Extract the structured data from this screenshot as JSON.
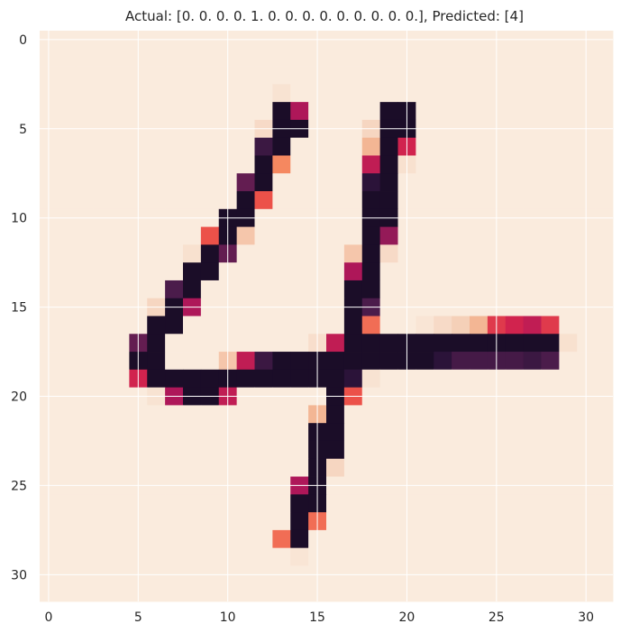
{
  "chart_data": {
    "type": "heatmap",
    "title": "Actual: [0. 0. 0. 0. 1. 0. 0. 0. 0. 0. 0. 0. 0. 0.], Predicted: [4]",
    "xlabel": "",
    "ylabel": "",
    "grid": true,
    "colormap": "rocket_r",
    "value_range": [
      0,
      1
    ],
    "shape": [
      32,
      32
    ],
    "x_ticks": [
      0,
      5,
      10,
      15,
      20,
      25,
      30
    ],
    "y_ticks": [
      0,
      5,
      10,
      15,
      20,
      25,
      30
    ],
    "values": [
      [
        0,
        0,
        0,
        0,
        0,
        0,
        0,
        0,
        0,
        0,
        0,
        0,
        0,
        0,
        0,
        0,
        0,
        0,
        0,
        0,
        0,
        0,
        0,
        0,
        0,
        0,
        0,
        0,
        0,
        0,
        0,
        0
      ],
      [
        0,
        0,
        0,
        0,
        0,
        0,
        0,
        0,
        0,
        0,
        0,
        0,
        0,
        0,
        0,
        0,
        0,
        0,
        0,
        0,
        0,
        0,
        0,
        0,
        0,
        0,
        0,
        0,
        0,
        0,
        0,
        0
      ],
      [
        0,
        0,
        0,
        0,
        0,
        0,
        0,
        0,
        0,
        0,
        0,
        0,
        0,
        0,
        0,
        0,
        0,
        0,
        0,
        0,
        0,
        0,
        0,
        0,
        0,
        0,
        0,
        0,
        0,
        0,
        0,
        0
      ],
      [
        0,
        0,
        0,
        0,
        0,
        0,
        0,
        0,
        0,
        0,
        0,
        0,
        0,
        0.04,
        0,
        0,
        0,
        0,
        0,
        0,
        0,
        0,
        0,
        0,
        0,
        0,
        0,
        0,
        0,
        0,
        0,
        0
      ],
      [
        0,
        0,
        0,
        0,
        0,
        0,
        0,
        0,
        0,
        0,
        0,
        0,
        0,
        0.95,
        0.6,
        0,
        0,
        0,
        0,
        0.95,
        0.95,
        0,
        0,
        0,
        0,
        0,
        0,
        0,
        0,
        0,
        0,
        0
      ],
      [
        0,
        0,
        0,
        0,
        0,
        0,
        0,
        0,
        0,
        0,
        0,
        0,
        0.08,
        0.95,
        0.95,
        0,
        0,
        0,
        0.1,
        0.95,
        0.95,
        0,
        0,
        0,
        0,
        0,
        0,
        0,
        0,
        0,
        0,
        0
      ],
      [
        0,
        0,
        0,
        0,
        0,
        0,
        0,
        0,
        0,
        0,
        0,
        0,
        0.85,
        0.95,
        0,
        0,
        0,
        0,
        0.2,
        0.95,
        0.5,
        0,
        0,
        0,
        0,
        0,
        0,
        0,
        0,
        0,
        0,
        0
      ],
      [
        0,
        0,
        0,
        0,
        0,
        0,
        0,
        0,
        0,
        0,
        0,
        0,
        0.95,
        0.3,
        0,
        0,
        0,
        0,
        0.55,
        0.95,
        0.05,
        0,
        0,
        0,
        0,
        0,
        0,
        0,
        0,
        0,
        0,
        0
      ],
      [
        0,
        0,
        0,
        0,
        0,
        0,
        0,
        0,
        0,
        0,
        0,
        0.75,
        0.95,
        0,
        0,
        0,
        0,
        0,
        0.9,
        0.95,
        0,
        0,
        0,
        0,
        0,
        0,
        0,
        0,
        0,
        0,
        0,
        0
      ],
      [
        0,
        0,
        0,
        0,
        0,
        0,
        0,
        0,
        0,
        0,
        0,
        0.95,
        0.4,
        0,
        0,
        0,
        0,
        0,
        0.95,
        0.95,
        0,
        0,
        0,
        0,
        0,
        0,
        0,
        0,
        0,
        0,
        0,
        0
      ],
      [
        0,
        0,
        0,
        0,
        0,
        0,
        0,
        0,
        0,
        0,
        0.95,
        0.95,
        0,
        0,
        0,
        0,
        0,
        0,
        0.95,
        0.95,
        0,
        0,
        0,
        0,
        0,
        0,
        0,
        0,
        0,
        0,
        0,
        0
      ],
      [
        0,
        0,
        0,
        0,
        0,
        0,
        0,
        0,
        0,
        0.4,
        0.95,
        0.15,
        0,
        0,
        0,
        0,
        0,
        0,
        0.95,
        0.65,
        0,
        0,
        0,
        0,
        0,
        0,
        0,
        0,
        0,
        0,
        0,
        0
      ],
      [
        0,
        0,
        0,
        0,
        0,
        0,
        0,
        0,
        0.05,
        0.95,
        0.75,
        0,
        0,
        0,
        0,
        0,
        0,
        0.15,
        0.95,
        0.08,
        0,
        0,
        0,
        0,
        0,
        0,
        0,
        0,
        0,
        0,
        0,
        0
      ],
      [
        0,
        0,
        0,
        0,
        0,
        0,
        0,
        0,
        0.95,
        0.95,
        0,
        0,
        0,
        0,
        0,
        0,
        0,
        0.6,
        0.95,
        0,
        0,
        0,
        0,
        0,
        0,
        0,
        0,
        0,
        0,
        0,
        0,
        0
      ],
      [
        0,
        0,
        0,
        0,
        0,
        0,
        0,
        0.8,
        0.95,
        0,
        0,
        0,
        0,
        0,
        0,
        0,
        0,
        0.95,
        0.95,
        0,
        0,
        0,
        0,
        0,
        0,
        0,
        0,
        0,
        0,
        0,
        0,
        0
      ],
      [
        0,
        0,
        0,
        0,
        0,
        0,
        0.1,
        0.95,
        0.6,
        0,
        0,
        0,
        0,
        0,
        0,
        0,
        0,
        0.95,
        0.8,
        0,
        0,
        0,
        0,
        0,
        0,
        0,
        0,
        0,
        0,
        0,
        0,
        0
      ],
      [
        0,
        0,
        0,
        0,
        0,
        0,
        0.95,
        0.95,
        0,
        0,
        0,
        0,
        0,
        0,
        0,
        0,
        0,
        0.95,
        0.35,
        0,
        0,
        0.03,
        0.08,
        0.12,
        0.2,
        0.45,
        0.5,
        0.55,
        0.45,
        0,
        0,
        0
      ],
      [
        0,
        0,
        0,
        0,
        0,
        0.75,
        0.95,
        0,
        0,
        0,
        0,
        0,
        0,
        0,
        0,
        0.06,
        0.55,
        0.95,
        0.95,
        0.95,
        0.95,
        0.95,
        0.95,
        0.95,
        0.95,
        0.95,
        0.95,
        0.95,
        0.95,
        0.05,
        0,
        0
      ],
      [
        0,
        0,
        0,
        0,
        0,
        0.95,
        0.95,
        0,
        0,
        0,
        0.15,
        0.55,
        0.85,
        0.95,
        0.95,
        0.95,
        0.95,
        0.95,
        0.95,
        0.95,
        0.95,
        0.95,
        0.9,
        0.82,
        0.82,
        0.82,
        0.82,
        0.85,
        0.8,
        0,
        0,
        0
      ],
      [
        0,
        0,
        0,
        0,
        0,
        0.5,
        0.95,
        0.95,
        0.95,
        0.95,
        0.95,
        0.95,
        0.95,
        0.95,
        0.95,
        0.95,
        0.95,
        0.9,
        0.04,
        0,
        0,
        0,
        0,
        0,
        0,
        0,
        0,
        0,
        0,
        0,
        0,
        0
      ],
      [
        0,
        0,
        0,
        0,
        0,
        0,
        0.04,
        0.6,
        0.95,
        0.95,
        0.55,
        0,
        0,
        0,
        0,
        0,
        0.95,
        0.4,
        0,
        0,
        0,
        0,
        0,
        0,
        0,
        0,
        0,
        0,
        0,
        0,
        0,
        0
      ],
      [
        0,
        0,
        0,
        0,
        0,
        0,
        0,
        0,
        0,
        0,
        0,
        0,
        0,
        0,
        0,
        0.2,
        0.95,
        0,
        0,
        0,
        0,
        0,
        0,
        0,
        0,
        0,
        0,
        0,
        0,
        0,
        0,
        0
      ],
      [
        0,
        0,
        0,
        0,
        0,
        0,
        0,
        0,
        0,
        0,
        0,
        0,
        0,
        0,
        0,
        0.95,
        0.95,
        0,
        0,
        0,
        0,
        0,
        0,
        0,
        0,
        0,
        0,
        0,
        0,
        0,
        0,
        0
      ],
      [
        0,
        0,
        0,
        0,
        0,
        0,
        0,
        0,
        0,
        0,
        0,
        0,
        0,
        0,
        0,
        0.95,
        0.95,
        0,
        0,
        0,
        0,
        0,
        0,
        0,
        0,
        0,
        0,
        0,
        0,
        0,
        0,
        0
      ],
      [
        0,
        0,
        0,
        0,
        0,
        0,
        0,
        0,
        0,
        0,
        0,
        0,
        0,
        0,
        0,
        0.95,
        0.1,
        0,
        0,
        0,
        0,
        0,
        0,
        0,
        0,
        0,
        0,
        0,
        0,
        0,
        0,
        0
      ],
      [
        0,
        0,
        0,
        0,
        0,
        0,
        0,
        0,
        0,
        0,
        0,
        0,
        0,
        0,
        0.6,
        0.95,
        0,
        0,
        0,
        0,
        0,
        0,
        0,
        0,
        0,
        0,
        0,
        0,
        0,
        0,
        0,
        0
      ],
      [
        0,
        0,
        0,
        0,
        0,
        0,
        0,
        0,
        0,
        0,
        0,
        0,
        0,
        0,
        0.95,
        0.95,
        0,
        0,
        0,
        0,
        0,
        0,
        0,
        0,
        0,
        0,
        0,
        0,
        0,
        0,
        0,
        0
      ],
      [
        0,
        0,
        0,
        0,
        0,
        0,
        0,
        0,
        0,
        0,
        0,
        0,
        0,
        0,
        0.95,
        0.35,
        0,
        0,
        0,
        0,
        0,
        0,
        0,
        0,
        0,
        0,
        0,
        0,
        0,
        0,
        0,
        0
      ],
      [
        0,
        0,
        0,
        0,
        0,
        0,
        0,
        0,
        0,
        0,
        0,
        0,
        0,
        0.35,
        0.95,
        0,
        0,
        0,
        0,
        0,
        0,
        0,
        0,
        0,
        0,
        0,
        0,
        0,
        0,
        0,
        0,
        0
      ],
      [
        0,
        0,
        0,
        0,
        0,
        0,
        0,
        0,
        0,
        0,
        0,
        0,
        0,
        0,
        0.03,
        0,
        0,
        0,
        0,
        0,
        0,
        0,
        0,
        0,
        0,
        0,
        0,
        0,
        0,
        0,
        0,
        0
      ],
      [
        0,
        0,
        0,
        0,
        0,
        0,
        0,
        0,
        0,
        0,
        0,
        0,
        0,
        0,
        0,
        0,
        0,
        0,
        0,
        0,
        0,
        0,
        0,
        0,
        0,
        0,
        0,
        0,
        0,
        0,
        0,
        0
      ],
      [
        0,
        0,
        0,
        0,
        0,
        0,
        0,
        0,
        0,
        0,
        0,
        0,
        0,
        0,
        0,
        0,
        0,
        0,
        0,
        0,
        0,
        0,
        0,
        0,
        0,
        0,
        0,
        0,
        0,
        0,
        0,
        0
      ]
    ]
  },
  "colors": {
    "cmap_stops": [
      "#faebdd",
      "#f6d6c1",
      "#f3b694",
      "#f58860",
      "#ec5149",
      "#d1234e",
      "#ae1759",
      "#7a1d56",
      "#4b1c4b",
      "#2b1339",
      "#0b0617"
    ],
    "grid": "#ffffff",
    "text": "#262626"
  }
}
